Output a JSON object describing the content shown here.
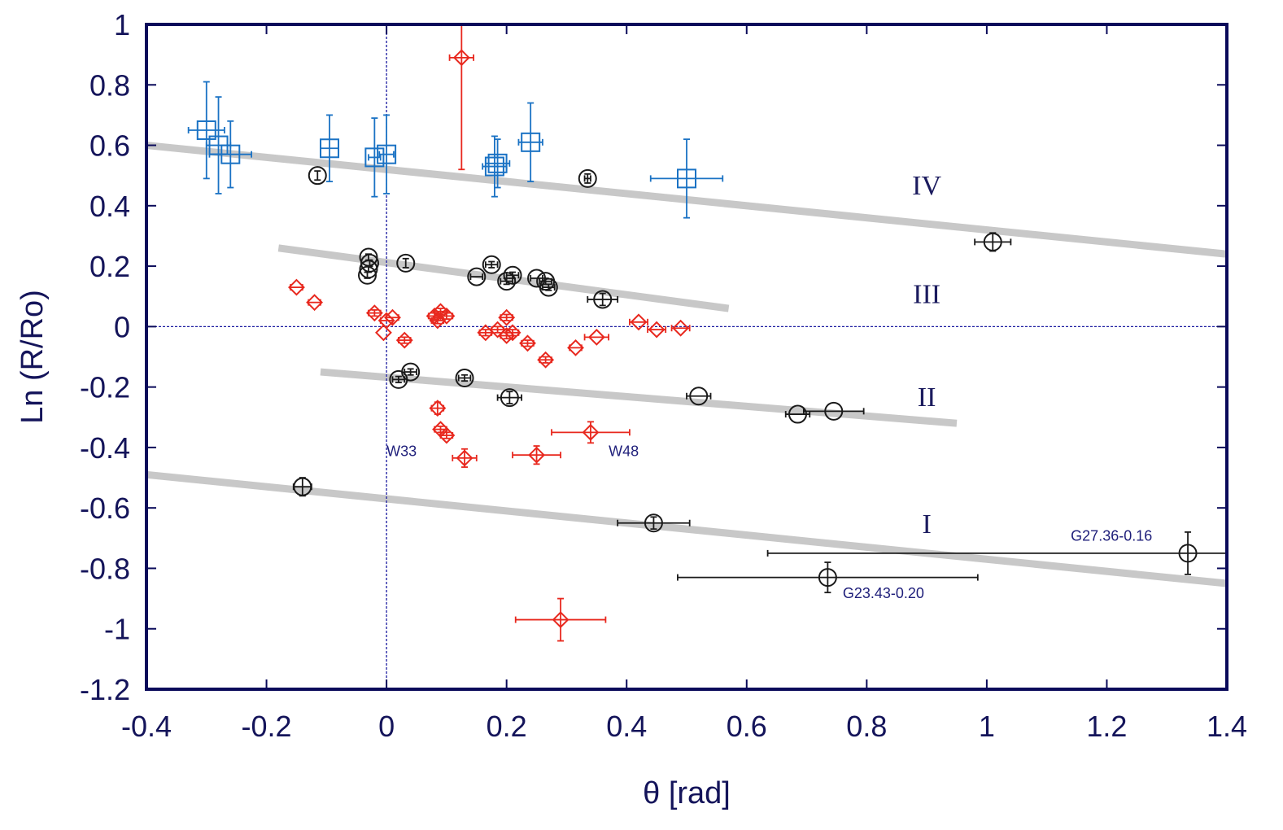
{
  "chart_data": {
    "type": "scatter",
    "title": "",
    "xlabel": "θ  [rad]",
    "ylabel": "Ln (R/Ro)",
    "xlim": [
      -0.4,
      1.4
    ],
    "ylim": [
      -1.2,
      1.0
    ],
    "x_ticks": [
      -0.4,
      -0.2,
      0,
      0.2,
      0.4,
      0.6,
      0.8,
      1,
      1.2,
      1.4
    ],
    "x_tick_labels": [
      "-0.4",
      "-0.2",
      "0",
      "0.2",
      "0.4",
      "0.6",
      "0.8",
      "1",
      "1.2",
      "1.4"
    ],
    "y_ticks": [
      1,
      0.8,
      0.6,
      0.4,
      0.2,
      0,
      -0.2,
      -0.4,
      -0.6,
      -0.8,
      -1,
      -1.2
    ],
    "y_tick_labels": [
      "1",
      "0.8",
      "0.6",
      "0.4",
      "0.2",
      "0",
      "-0.2",
      "-0.4",
      "-0.6",
      "-0.8",
      "-1",
      "-1.2"
    ],
    "grid": false,
    "zero_lines": {
      "x": 0,
      "y": 0,
      "color": "#1a1aa0"
    },
    "trend_lines": [
      {
        "name": "IV",
        "x": [
          -0.4,
          1.4
        ],
        "y": [
          0.6,
          0.24
        ],
        "color": "#c8c8c8"
      },
      {
        "name": "III",
        "x": [
          -0.18,
          0.57
        ],
        "y": [
          0.26,
          0.06
        ],
        "color": "#c8c8c8"
      },
      {
        "name": "II",
        "x": [
          -0.11,
          0.95
        ],
        "y": [
          -0.15,
          -0.32
        ],
        "color": "#c8c8c8"
      },
      {
        "name": "I",
        "x": [
          -0.4,
          1.4
        ],
        "y": [
          -0.49,
          -0.85
        ],
        "color": "#c8c8c8"
      }
    ],
    "region_labels": [
      {
        "text": "IV",
        "x": 0.9,
        "y": 0.47
      },
      {
        "text": "III",
        "x": 0.9,
        "y": 0.11
      },
      {
        "text": "II",
        "x": 0.9,
        "y": -0.23
      },
      {
        "text": "I",
        "x": 0.9,
        "y": -0.65
      }
    ],
    "annotations": [
      {
        "text": "W33",
        "x": 0,
        "y": -0.41
      },
      {
        "text": "W48",
        "x": 0.37,
        "y": -0.41
      },
      {
        "text": "G27.36-0.16",
        "x": 1.14,
        "y": -0.69
      },
      {
        "text": "G23.43-0.20",
        "x": 0.76,
        "y": -0.88
      }
    ],
    "series": [
      {
        "name": "blue squares",
        "marker": "square",
        "color": "#1a72c4",
        "points": [
          {
            "x": -0.3,
            "y": 0.65,
            "xerr": 0.03,
            "yerr": 0.16
          },
          {
            "x": -0.28,
            "y": 0.6,
            "xerr": 0.02,
            "yerr": 0.16
          },
          {
            "x": -0.26,
            "y": 0.57,
            "xerr": 0.035,
            "yerr": 0.11
          },
          {
            "x": -0.095,
            "y": 0.59,
            "xerr": 0.015,
            "yerr": 0.11
          },
          {
            "x": -0.02,
            "y": 0.56,
            "xerr": 0.01,
            "yerr": 0.13
          },
          {
            "x": 0,
            "y": 0.57,
            "xerr": 0.012,
            "yerr": 0.13
          },
          {
            "x": 0.18,
            "y": 0.53,
            "xerr": 0.02,
            "yerr": 0.1
          },
          {
            "x": 0.185,
            "y": 0.54,
            "xerr": 0.02,
            "yerr": 0.08
          },
          {
            "x": 0.24,
            "y": 0.61,
            "xerr": 0.02,
            "yerr": 0.13
          },
          {
            "x": 0.5,
            "y": 0.49,
            "xerr": 0.06,
            "yerr": 0.13
          }
        ]
      },
      {
        "name": "black circles",
        "marker": "circle",
        "color": "#1a1a1a",
        "points": [
          {
            "x": -0.115,
            "y": 0.5,
            "xerr": 0,
            "yerr": 0.015
          },
          {
            "x": 0.335,
            "y": 0.49,
            "xerr": 0.005,
            "yerr": 0.015
          },
          {
            "x": -0.03,
            "y": 0.23,
            "xerr": 0,
            "yerr": 0.01
          },
          {
            "x": -0.028,
            "y": 0.21,
            "xerr": 0,
            "yerr": 0.01
          },
          {
            "x": -0.03,
            "y": 0.19,
            "xerr": 0,
            "yerr": 0.01
          },
          {
            "x": -0.032,
            "y": 0.17,
            "xerr": 0,
            "yerr": 0.01
          },
          {
            "x": 0.032,
            "y": 0.21,
            "xerr": 0,
            "yerr": 0.015
          },
          {
            "x": 0.15,
            "y": 0.165,
            "xerr": 0.01,
            "yerr": 0
          },
          {
            "x": 0.175,
            "y": 0.205,
            "xerr": 0.01,
            "yerr": 0.01
          },
          {
            "x": 0.2,
            "y": 0.15,
            "xerr": 0.01,
            "yerr": 0.01
          },
          {
            "x": 0.21,
            "y": 0.17,
            "xerr": 0.01,
            "yerr": 0.01
          },
          {
            "x": 0.25,
            "y": 0.16,
            "xerr": 0.01,
            "yerr": 0
          },
          {
            "x": 0.265,
            "y": 0.15,
            "xerr": 0.01,
            "yerr": 0.01
          },
          {
            "x": 0.27,
            "y": 0.13,
            "xerr": 0.01,
            "yerr": 0.01
          },
          {
            "x": 0.36,
            "y": 0.09,
            "xerr": 0.025,
            "yerr": 0.02
          },
          {
            "x": 1.01,
            "y": 0.28,
            "xerr": 0.03,
            "yerr": 0.03
          },
          {
            "x": 0.02,
            "y": -0.175,
            "xerr": 0.01,
            "yerr": 0.01
          },
          {
            "x": 0.04,
            "y": -0.15,
            "xerr": 0.01,
            "yerr": 0.01
          },
          {
            "x": 0.13,
            "y": -0.17,
            "xerr": 0.01,
            "yerr": 0.01
          },
          {
            "x": 0.205,
            "y": -0.235,
            "xerr": 0.02,
            "yerr": 0.02
          },
          {
            "x": 0.52,
            "y": -0.23,
            "xerr": 0.02,
            "yerr": 0
          },
          {
            "x": 0.685,
            "y": -0.29,
            "xerr": 0.02,
            "yerr": 0
          },
          {
            "x": 0.745,
            "y": -0.28,
            "xerr": 0.05,
            "yerr": 0
          },
          {
            "x": -0.14,
            "y": -0.53,
            "xerr": 0.015,
            "yerr": 0.03
          },
          {
            "x": 0.445,
            "y": -0.65,
            "xerr": 0.06,
            "yerr": 0.02
          },
          {
            "x": 0.735,
            "y": -0.83,
            "xerr": 0.25,
            "yerr": 0.05
          },
          {
            "x": 1.335,
            "y": -0.75,
            "xerr": 0.7,
            "yerr": 0.07
          }
        ]
      },
      {
        "name": "red diamonds",
        "marker": "diamond",
        "color": "#e8281e",
        "points": [
          {
            "x": 0.125,
            "y": 0.89,
            "xerr": 0.02,
            "yerr": 0.37
          },
          {
            "x": -0.15,
            "y": 0.13,
            "xerr": 0.01,
            "yerr": 0
          },
          {
            "x": -0.12,
            "y": 0.08,
            "xerr": 0.01,
            "yerr": 0
          },
          {
            "x": -0.02,
            "y": 0.045,
            "xerr": 0.01,
            "yerr": 0.01
          },
          {
            "x": 0,
            "y": 0.02,
            "xerr": 0.01,
            "yerr": 0
          },
          {
            "x": 0.01,
            "y": 0.03,
            "xerr": 0.01,
            "yerr": 0
          },
          {
            "x": -0.005,
            "y": -0.02,
            "xerr": 0,
            "yerr": 0
          },
          {
            "x": 0.03,
            "y": -0.045,
            "xerr": 0.01,
            "yerr": 0.01
          },
          {
            "x": 0.08,
            "y": 0.035,
            "xerr": 0.01,
            "yerr": 0.01
          },
          {
            "x": 0.09,
            "y": 0.05,
            "xerr": 0.01,
            "yerr": 0.01
          },
          {
            "x": 0.1,
            "y": 0.035,
            "xerr": 0.01,
            "yerr": 0.01
          },
          {
            "x": 0.085,
            "y": 0.02,
            "xerr": 0.01,
            "yerr": 0.01
          },
          {
            "x": 0.165,
            "y": -0.02,
            "xerr": 0.01,
            "yerr": 0.01
          },
          {
            "x": 0.185,
            "y": -0.01,
            "xerr": 0.01,
            "yerr": 0.01
          },
          {
            "x": 0.2,
            "y": 0.03,
            "xerr": 0.01,
            "yerr": 0.01
          },
          {
            "x": 0.2,
            "y": -0.03,
            "xerr": 0.01,
            "yerr": 0.01
          },
          {
            "x": 0.21,
            "y": -0.02,
            "xerr": 0.01,
            "yerr": 0.01
          },
          {
            "x": 0.235,
            "y": -0.055,
            "xerr": 0.01,
            "yerr": 0.01
          },
          {
            "x": 0.265,
            "y": -0.11,
            "xerr": 0.01,
            "yerr": 0.01
          },
          {
            "x": 0.315,
            "y": -0.07,
            "xerr": 0.01,
            "yerr": 0
          },
          {
            "x": 0.35,
            "y": -0.035,
            "xerr": 0.02,
            "yerr": 0
          },
          {
            "x": 0.42,
            "y": 0.015,
            "xerr": 0.015,
            "yerr": 0
          },
          {
            "x": 0.45,
            "y": -0.01,
            "xerr": 0.015,
            "yerr": 0
          },
          {
            "x": 0.49,
            "y": -0.005,
            "xerr": 0.015,
            "yerr": 0
          },
          {
            "x": 0.085,
            "y": -0.27,
            "xerr": 0.01,
            "yerr": 0.02
          },
          {
            "x": 0.09,
            "y": -0.34,
            "xerr": 0.01,
            "yerr": 0.01
          },
          {
            "x": 0.1,
            "y": -0.36,
            "xerr": 0.01,
            "yerr": 0.01
          },
          {
            "x": 0.13,
            "y": -0.435,
            "xerr": 0.02,
            "yerr": 0.03
          },
          {
            "x": 0.25,
            "y": -0.425,
            "xerr": 0.04,
            "yerr": 0.03
          },
          {
            "x": 0.34,
            "y": -0.35,
            "xerr": 0.065,
            "yerr": 0.035
          },
          {
            "x": 0.29,
            "y": -0.97,
            "xerr": 0.075,
            "yerr": 0.07
          }
        ]
      }
    ]
  }
}
